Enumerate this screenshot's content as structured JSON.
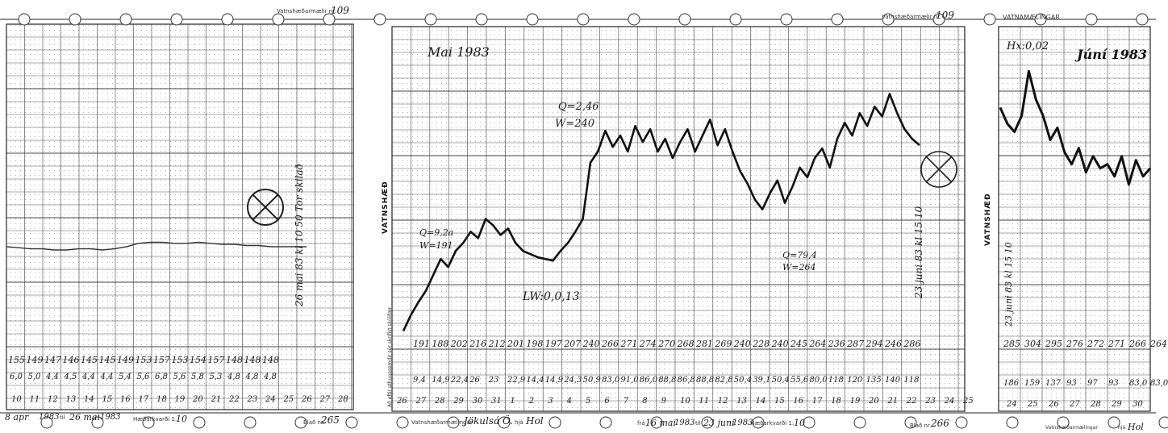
{
  "panels": [
    {
      "id": "sheet-265",
      "printed_title": "Vatnshæðarmælir nr.",
      "gauge_number": "109",
      "annotation": "26 mai 83 kl 10 50 Tor skilað",
      "date_from_day": "8 apr",
      "year_from": "1983",
      "date_to_label": "til",
      "date_to_day": "26 mai",
      "year_to": "1983",
      "scale_label": "Hæðarkvarði 1:",
      "scale_value": "10",
      "sheet_label": "Blað nr.",
      "sheet_number": "265",
      "readings_row1": [
        "155",
        "149",
        "147",
        "146",
        "145",
        "145",
        "149",
        "153",
        "157",
        "153",
        "154",
        "157",
        "148",
        "148",
        "148"
      ],
      "readings_row2": [
        "6,0",
        "5,0",
        "4,4",
        "4,5",
        "4,4",
        "4,4",
        "5,4",
        "5,6",
        "6,8",
        "5,6",
        "5,8",
        "5,3",
        "4,8",
        "4,8",
        "4,8"
      ],
      "day_numbers": [
        "10",
        "11",
        "12",
        "13",
        "14",
        "15",
        "16",
        "17",
        "18",
        "19",
        "20",
        "21",
        "22",
        "23",
        "24",
        "25",
        "26",
        "27",
        "28"
      ]
    },
    {
      "id": "sheet-266",
      "printed_title": "Vatnshæðarmælir nr.",
      "gauge_number": "109",
      "month_label": "Mai 1983",
      "vertical_label": "VATNSHÆÐ",
      "side_printed_text": "Að eftir athugasemdir sér skrifist skólifær",
      "annotation_q1": "Q=2,46",
      "annotation_w1": "W=240",
      "annotation_q2": "Q=79,4",
      "annotation_w2": "W=264",
      "annotation_lw": "LW:0,0,13",
      "annotation_q3": "Q=9,2a",
      "annotation_w3": "W=191",
      "annotation_right": "23 juni 83 kl 15 10",
      "date_from_prefix": "frá",
      "date_from_day": "16 mai",
      "year_from": "1983",
      "date_to_label": "til",
      "date_to_day": "23 juni",
      "year_to": "1983",
      "station_label": "Vatnshæðarmælingar",
      "station_value": "Jökulsá Ö.",
      "near_label": "hjá",
      "near_value": "Hol",
      "scale_label": "Hæðarkvarði 1:",
      "scale_value": "10",
      "sheet_label": "Blað nr.",
      "sheet_number": "266",
      "readings_row1": [
        "191",
        "188",
        "202",
        "216",
        "212",
        "201",
        "198",
        "197",
        "207",
        "240",
        "266",
        "271",
        "274",
        "270",
        "268",
        "281",
        "269",
        "240",
        "228",
        "240",
        "245",
        "264",
        "236",
        "287",
        "294",
        "246",
        "286"
      ],
      "readings_row2": [
        "9,4",
        "14,9",
        "22,4",
        "26",
        "23",
        "22,9",
        "14,4",
        "14,9",
        "24,3",
        "50,9",
        "83,0",
        "91,0",
        "86,0",
        "88,8",
        "86,8",
        "88,8",
        "82,8",
        "50,4",
        "39,1",
        "50,4",
        "55,6",
        "80,0",
        "118",
        "120",
        "135",
        "140",
        "118"
      ],
      "day_numbers": [
        "26",
        "27",
        "28",
        "29",
        "30",
        "31",
        "1",
        "2",
        "3",
        "4",
        "5",
        "6",
        "7",
        "8",
        "9",
        "10",
        "11",
        "12",
        "13",
        "14",
        "15",
        "16",
        "17",
        "18",
        "19",
        "20",
        "21",
        "22",
        "23",
        "24",
        "25"
      ],
      "circle_mark": "⊗"
    },
    {
      "id": "sheet-267",
      "printed_title": "VATNAMÆLINGAR",
      "month_label": "Júní 1983",
      "peak_label": "Hx:0,02",
      "vertical_label": "VATNSHÆÐ",
      "annotation_left": "23 juni 83 kl 15 10",
      "readings_row1": [
        "285",
        "304",
        "295",
        "276",
        "272",
        "271",
        "266",
        "264"
      ],
      "readings_row2": [
        "186",
        "159",
        "137",
        "93",
        "97",
        "93",
        "83,0",
        "83,0"
      ],
      "day_numbers": [
        "24",
        "25",
        "26",
        "27",
        "28",
        "29",
        "30"
      ],
      "station_label": "Vatnshæðarmælingar",
      "near_label": "hjá",
      "near_value": "Hol"
    }
  ],
  "chart_data": [
    {
      "type": "line",
      "title": "",
      "series": [
        {
          "name": "",
          "x": [
            0,
            1,
            2,
            3,
            4,
            5,
            6,
            7,
            8,
            9,
            10,
            11,
            12,
            13,
            14,
            15,
            16,
            17,
            18,
            19,
            20,
            21,
            22,
            23,
            24,
            25
          ],
          "values": [
            148,
            147,
            146,
            146,
            145,
            145,
            146,
            146,
            145,
            146,
            148,
            151,
            152,
            152,
            151,
            151,
            152,
            151,
            150,
            150,
            149,
            149,
            148,
            148,
            148,
            148
          ]
        }
      ]
    },
    {
      "type": "line",
      "title": "",
      "series": [
        {
          "name": "",
          "x": [
            0,
            1,
            2,
            3,
            4,
            5,
            6,
            7,
            8,
            9,
            10,
            11,
            12,
            13,
            14,
            15,
            16,
            17,
            18,
            19,
            20,
            21,
            22,
            23,
            24,
            25,
            26,
            27,
            28,
            29,
            30,
            31,
            32,
            33,
            34,
            35,
            36,
            37,
            38,
            39,
            40,
            41,
            42,
            43,
            44,
            45,
            46,
            47,
            48,
            49,
            50,
            51,
            52,
            53,
            54,
            55,
            56,
            57,
            58,
            59,
            60,
            61,
            62,
            63,
            64,
            65,
            66,
            67,
            68,
            69
          ],
          "values": [
            150,
            160,
            168,
            175,
            185,
            195,
            190,
            200,
            205,
            212,
            208,
            220,
            216,
            210,
            214,
            205,
            200,
            198,
            196,
            195,
            194,
            200,
            205,
            212,
            220,
            255,
            262,
            275,
            265,
            272,
            262,
            278,
            268,
            276,
            262,
            270,
            258,
            268,
            276,
            262,
            272,
            282,
            266,
            276,
            262,
            250,
            242,
            232,
            226,
            236,
            244,
            230,
            240,
            252,
            246,
            258,
            264,
            252,
            270,
            280,
            272,
            286,
            278,
            290,
            284,
            298,
            286,
            276,
            270,
            266
          ]
        }
      ]
    },
    {
      "type": "line",
      "title": "",
      "series": [
        {
          "name": "",
          "x": [
            0,
            1,
            2,
            3,
            4,
            5,
            6,
            7,
            8,
            9,
            10,
            11,
            12,
            13,
            14,
            15,
            16,
            17,
            18,
            19,
            20,
            21
          ],
          "values": [
            300,
            292,
            288,
            296,
            318,
            304,
            296,
            284,
            290,
            278,
            272,
            280,
            268,
            276,
            270,
            272,
            266,
            276,
            262,
            274,
            266,
            270
          ]
        }
      ]
    }
  ]
}
